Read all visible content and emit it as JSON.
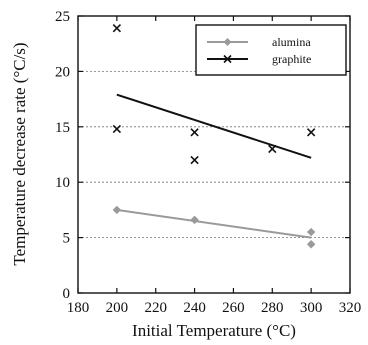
{
  "chart_data": {
    "type": "scatter",
    "xlabel": "Initial Temperature (°C)",
    "ylabel": "Temperature decrease rate (°C/s)",
    "xlim": [
      180,
      320
    ],
    "ylim": [
      0,
      25
    ],
    "xticks": [
      180,
      200,
      220,
      240,
      260,
      280,
      300,
      320
    ],
    "yticks": [
      0,
      5,
      10,
      15,
      20,
      25
    ],
    "grid": "horizontal dashed",
    "legend_position": "top-right",
    "series": [
      {
        "name": "alumina",
        "marker": "diamond",
        "color": "#9a9a9a",
        "points": [
          {
            "x": 200,
            "y": 7.5
          },
          {
            "x": 240,
            "y": 6.6
          },
          {
            "x": 300,
            "y": 5.5
          },
          {
            "x": 300,
            "y": 4.4
          }
        ],
        "trend": {
          "x": [
            200,
            300
          ],
          "y": [
            7.5,
            5.0
          ]
        }
      },
      {
        "name": "graphite",
        "marker": "x",
        "color": "#111111",
        "points": [
          {
            "x": 200,
            "y": 23.9
          },
          {
            "x": 200,
            "y": 14.8
          },
          {
            "x": 240,
            "y": 14.5
          },
          {
            "x": 240,
            "y": 12.0
          },
          {
            "x": 280,
            "y": 13.0
          },
          {
            "x": 300,
            "y": 14.5
          }
        ],
        "trend": {
          "x": [
            200,
            300
          ],
          "y": [
            17.9,
            12.2
          ]
        }
      }
    ]
  }
}
